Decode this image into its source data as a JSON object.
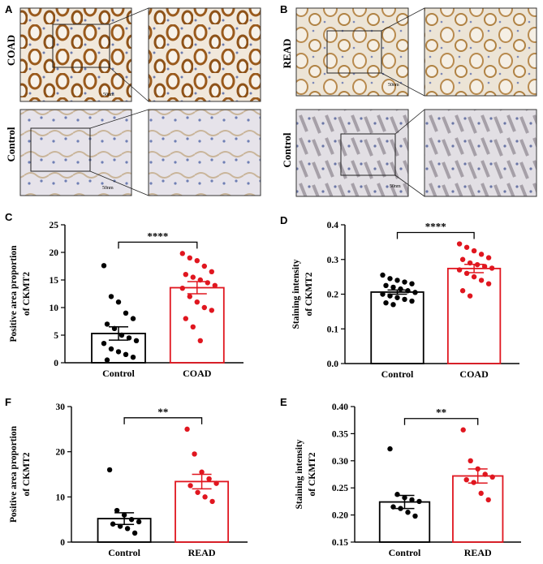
{
  "panels": {
    "A": {
      "letter": "A",
      "label_top": "COAD",
      "label_bottom": "Control",
      "scale_top": "50nm",
      "scale_bottom": "50nm"
    },
    "B": {
      "letter": "B",
      "label_top": "READ",
      "label_bottom": "Control",
      "scale_top": "50nm",
      "scale_bottom": "50nm"
    }
  },
  "colors": {
    "control": "#000000",
    "disease": "#e0161f",
    "tissue": "#eae4dc",
    "stain": "#a06a28"
  },
  "chart_data": [
    {
      "id": "C",
      "letter": "C",
      "type": "bar",
      "ylabel": "Positive area proportion of CKMT2",
      "categories": [
        "Control",
        "COAD"
      ],
      "values": [
        5.3,
        13.6
      ],
      "sem": [
        1.2,
        1.1
      ],
      "ylim": [
        0,
        25
      ],
      "yticks": [
        0,
        5,
        10,
        15,
        20,
        25
      ],
      "significance": "****",
      "points": [
        [
          17.6,
          12.0,
          11.0,
          9.0,
          8.0,
          7.0,
          6.2,
          5.0,
          4.5,
          4.0,
          3.5,
          2.5,
          2.0,
          1.5,
          1.0,
          0.5
        ],
        [
          19.8,
          19.0,
          18.5,
          17.5,
          16.5,
          16.0,
          15.5,
          15.0,
          14.5,
          14.0,
          13.5,
          12.0,
          11.0,
          10.0,
          9.5,
          8.0,
          6.5,
          4.0
        ]
      ]
    },
    {
      "id": "D",
      "letter": "D",
      "type": "bar",
      "ylabel": "Staining intensity of CKMT2",
      "categories": [
        "Control",
        "COAD"
      ],
      "values": [
        0.206,
        0.274
      ],
      "sem": [
        0.006,
        0.012
      ],
      "ylim": [
        0,
        0.4
      ],
      "yticks": [
        "0.0",
        "0.1",
        "0.2",
        "0.3",
        "0.4"
      ],
      "significance": "****",
      "points": [
        [
          0.255,
          0.245,
          0.24,
          0.235,
          0.23,
          0.225,
          0.22,
          0.215,
          0.21,
          0.205,
          0.2,
          0.195,
          0.19,
          0.185,
          0.18,
          0.175,
          0.17
        ],
        [
          0.345,
          0.335,
          0.325,
          0.315,
          0.305,
          0.3,
          0.29,
          0.285,
          0.28,
          0.275,
          0.27,
          0.26,
          0.25,
          0.24,
          0.23,
          0.21,
          0.195
        ]
      ]
    },
    {
      "id": "F",
      "letter": "F",
      "type": "bar",
      "ylabel": "Positive area proportion of CKMT2",
      "categories": [
        "Control",
        "READ"
      ],
      "values": [
        5.2,
        13.4
      ],
      "sem": [
        1.3,
        1.6
      ],
      "ylim": [
        0,
        30
      ],
      "yticks": [
        0,
        10,
        20,
        30
      ],
      "significance": "**",
      "points": [
        [
          16.0,
          7.0,
          6.0,
          5.0,
          4.5,
          4.0,
          3.5,
          3.0,
          2.0
        ],
        [
          25.0,
          19.5,
          15.5,
          14.0,
          13.0,
          12.5,
          11.0,
          10.0,
          9.0
        ]
      ]
    },
    {
      "id": "E",
      "letter": "E",
      "type": "bar",
      "ylabel": "Staining intensity of CKMT2",
      "categories": [
        "Control",
        "READ"
      ],
      "values": [
        0.224,
        0.272
      ],
      "sem": [
        0.012,
        0.013
      ],
      "ylim": [
        0.15,
        0.4
      ],
      "yticks": [
        "0.15",
        "0.20",
        "0.25",
        "0.30",
        "0.35",
        "0.40"
      ],
      "significance": "**",
      "points": [
        [
          0.322,
          0.238,
          0.232,
          0.228,
          0.225,
          0.215,
          0.212,
          0.205,
          0.198
        ],
        [
          0.357,
          0.3,
          0.285,
          0.275,
          0.27,
          0.265,
          0.26,
          0.24,
          0.228
        ]
      ]
    }
  ]
}
